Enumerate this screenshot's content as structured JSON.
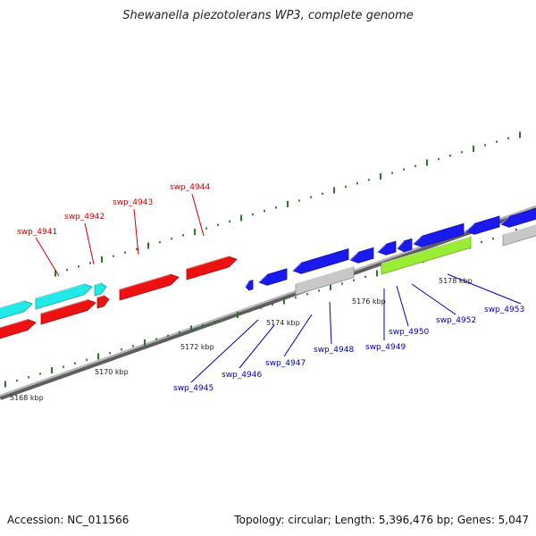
{
  "title": "Shewanella piezotolerans WP3, complete genome",
  "footer": {
    "accession": "Accession: NC_011566",
    "summary": "Topology: circular; Length: 5,396,476 bp; Genes: 5,047"
  },
  "colors": {
    "forward_gene": "#1a1aee",
    "reverse_gene": "#ee1111",
    "cyan_gene": "#22e8e8",
    "green_gene": "#99ee33",
    "gray_feature": "#c8c8c8",
    "backbone": "#8a8a8a",
    "tick": "#2a7a2a",
    "label_blue": "#0000aa",
    "label_red": "#cc0000"
  },
  "scale_labels": [
    "5168 kbp",
    "5170 kbp",
    "5172 kbp",
    "5174 kbp",
    "5176 kbp",
    "5178 kbp"
  ],
  "gene_labels_red": [
    "swp_4941",
    "swp_4942",
    "swp_4943",
    "swp_4944"
  ],
  "gene_labels_blue": [
    "swp_4945",
    "swp_4946",
    "swp_4947",
    "swp_4948",
    "swp_4949",
    "swp_4950",
    "swp_4952",
    "swp_4953"
  ]
}
